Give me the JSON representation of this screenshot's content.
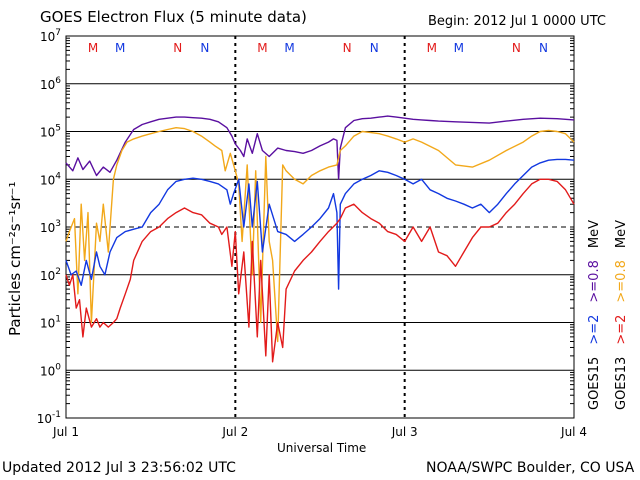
{
  "title": "GOES Electron Flux (5 minute data)",
  "begin": "Begin: 2012 Jul 1 0000 UTC",
  "updated": "Updated 2012 Jul  3 23:56:02 UTC",
  "source": "NOAA/SWPC Boulder, CO USA",
  "colors": {
    "red": "#e21b1b",
    "blue": "#1238e0",
    "purple": "#5a0fa0",
    "orange": "#f2a81a"
  },
  "chart_data": {
    "type": "line",
    "title": "GOES Electron Flux (5 minute data)",
    "xlabel": "Universal Time",
    "ylabel": "Particles cm⁻²s⁻¹sr⁻¹",
    "x_unit": "days since 2012 Jul 1 0000 UTC",
    "xlim": [
      0,
      3
    ],
    "x_ticks": [
      {
        "x": 0,
        "label": "Jul 1"
      },
      {
        "x": 1,
        "label": "Jul 2"
      },
      {
        "x": 2,
        "label": "Jul 3"
      },
      {
        "x": 3,
        "label": "Jul 4"
      }
    ],
    "y_scale": "log",
    "ylim": [
      0.1,
      10000000
    ],
    "y_ticks": [
      {
        "value": 0.1,
        "base": "10",
        "exp": "-1"
      },
      {
        "value": 1,
        "base": "10",
        "exp": "0"
      },
      {
        "value": 10,
        "base": "10",
        "exp": "1"
      },
      {
        "value": 100,
        "base": "10",
        "exp": "2"
      },
      {
        "value": 1000,
        "base": "10",
        "exp": "3"
      },
      {
        "value": 10000,
        "base": "10",
        "exp": "4"
      },
      {
        "value": 100000,
        "base": "10",
        "exp": "5"
      },
      {
        "value": 1000000,
        "base": "10",
        "exp": "6"
      },
      {
        "value": 10000000,
        "base": "10",
        "exp": "7"
      }
    ],
    "markers": [
      {
        "x": 0.16,
        "label": "M",
        "color": "#e21b1b"
      },
      {
        "x": 0.32,
        "label": "M",
        "color": "#1238e0"
      },
      {
        "x": 0.66,
        "label": "N",
        "color": "#e21b1b"
      },
      {
        "x": 0.82,
        "label": "N",
        "color": "#1238e0"
      },
      {
        "x": 1.16,
        "label": "M",
        "color": "#e21b1b"
      },
      {
        "x": 1.32,
        "label": "M",
        "color": "#1238e0"
      },
      {
        "x": 1.66,
        "label": "N",
        "color": "#e21b1b"
      },
      {
        "x": 1.82,
        "label": "N",
        "color": "#1238e0"
      },
      {
        "x": 2.16,
        "label": "M",
        "color": "#e21b1b"
      },
      {
        "x": 2.32,
        "label": "M",
        "color": "#1238e0"
      },
      {
        "x": 2.66,
        "label": "N",
        "color": "#e21b1b"
      },
      {
        "x": 2.82,
        "label": "N",
        "color": "#1238e0"
      }
    ],
    "dashed_threshold": 1000,
    "legend": {
      "placement": "right",
      "col1": [
        {
          "text": "GOES15",
          "color": "#000000"
        },
        {
          "text": ">=2",
          "color": "#1238e0"
        },
        {
          "text": ">=0.8",
          "color": "#5a0fa0"
        },
        {
          "text": "MeV",
          "color": "#000000"
        }
      ],
      "col2": [
        {
          "text": "GOES13",
          "color": "#000000"
        },
        {
          "text": ">=2",
          "color": "#e21b1b"
        },
        {
          "text": ">=0.8",
          "color": "#f2a81a"
        },
        {
          "text": "MeV",
          "color": "#000000"
        }
      ]
    },
    "series": [
      {
        "name": "GOES15 >=0.8 MeV",
        "color": "#5a0fa0",
        "x": [
          0,
          0.04,
          0.07,
          0.1,
          0.14,
          0.18,
          0.22,
          0.26,
          0.3,
          0.35,
          0.4,
          0.45,
          0.5,
          0.55,
          0.6,
          0.65,
          0.7,
          0.75,
          0.8,
          0.85,
          0.9,
          0.95,
          0.98,
          1.0,
          1.03,
          1.05,
          1.07,
          1.1,
          1.13,
          1.16,
          1.2,
          1.25,
          1.3,
          1.35,
          1.4,
          1.45,
          1.5,
          1.55,
          1.58,
          1.6,
          1.61,
          1.62,
          1.65,
          1.7,
          1.75,
          1.8,
          1.85,
          1.9,
          1.95,
          2.0,
          2.05,
          2.1,
          2.15,
          2.2,
          2.3,
          2.4,
          2.5,
          2.6,
          2.7,
          2.8,
          2.9,
          3.0
        ],
        "y": [
          22000,
          15000,
          28000,
          16000,
          24000,
          12000,
          18000,
          14000,
          25000,
          60000,
          110000,
          140000,
          160000,
          180000,
          190000,
          200000,
          200000,
          195000,
          190000,
          180000,
          160000,
          120000,
          80000,
          55000,
          40000,
          30000,
          70000,
          35000,
          90000,
          40000,
          30000,
          45000,
          40000,
          38000,
          35000,
          40000,
          50000,
          60000,
          70000,
          65000,
          10000,
          45000,
          120000,
          170000,
          185000,
          190000,
          200000,
          210000,
          200000,
          190000,
          180000,
          175000,
          170000,
          165000,
          160000,
          155000,
          150000,
          165000,
          180000,
          190000,
          185000,
          175000
        ]
      },
      {
        "name": "GOES13 >=0.8 MeV",
        "color": "#f2a81a",
        "x": [
          0,
          0.02,
          0.05,
          0.07,
          0.09,
          0.11,
          0.13,
          0.15,
          0.18,
          0.2,
          0.22,
          0.25,
          0.28,
          0.3,
          0.33,
          0.36,
          0.4,
          0.45,
          0.5,
          0.55,
          0.6,
          0.65,
          0.7,
          0.75,
          0.8,
          0.85,
          0.88,
          0.92,
          0.94,
          0.97,
          1.0,
          1.02,
          1.04,
          1.07,
          1.1,
          1.12,
          1.15,
          1.18,
          1.2,
          1.22,
          1.25,
          1.28,
          1.3,
          1.35,
          1.4,
          1.45,
          1.5,
          1.55,
          1.6,
          1.62,
          1.65,
          1.7,
          1.75,
          1.8,
          1.85,
          1.9,
          1.95,
          2.0,
          2.05,
          2.1,
          2.2,
          2.3,
          2.4,
          2.5,
          2.6,
          2.7,
          2.75,
          2.8,
          2.85,
          2.9,
          2.95,
          3.0
        ],
        "y": [
          500,
          800,
          1500,
          40,
          3000,
          200,
          2000,
          10,
          1200,
          500,
          3000,
          300,
          10000,
          20000,
          40000,
          60000,
          70000,
          80000,
          90000,
          100000,
          110000,
          120000,
          115000,
          100000,
          80000,
          60000,
          50000,
          40000,
          15000,
          35000,
          15000,
          8000,
          500,
          20000,
          100,
          15000,
          10,
          30000,
          500,
          200,
          4,
          20000,
          15000,
          10000,
          8000,
          12000,
          15000,
          18000,
          20000,
          40000,
          50000,
          80000,
          100000,
          95000,
          90000,
          80000,
          70000,
          60000,
          70000,
          60000,
          40000,
          20000,
          18000,
          25000,
          40000,
          60000,
          80000,
          100000,
          105000,
          100000,
          90000,
          60000
        ]
      },
      {
        "name": "GOES15 >=2 MeV",
        "color": "#1238e0",
        "x": [
          0,
          0.03,
          0.06,
          0.09,
          0.12,
          0.15,
          0.18,
          0.2,
          0.23,
          0.26,
          0.3,
          0.35,
          0.4,
          0.45,
          0.5,
          0.55,
          0.6,
          0.65,
          0.7,
          0.75,
          0.8,
          0.85,
          0.9,
          0.95,
          0.97,
          0.99,
          1.02,
          1.05,
          1.08,
          1.1,
          1.13,
          1.16,
          1.2,
          1.25,
          1.3,
          1.35,
          1.4,
          1.45,
          1.5,
          1.55,
          1.58,
          1.6,
          1.61,
          1.62,
          1.65,
          1.7,
          1.75,
          1.8,
          1.85,
          1.9,
          1.95,
          2.0,
          2.05,
          2.1,
          2.15,
          2.2,
          2.25,
          2.3,
          2.35,
          2.4,
          2.45,
          2.5,
          2.55,
          2.6,
          2.65,
          2.7,
          2.75,
          2.8,
          2.85,
          2.9,
          2.95,
          3.0
        ],
        "y": [
          200,
          100,
          120,
          60,
          200,
          80,
          300,
          150,
          100,
          300,
          600,
          800,
          900,
          1000,
          2000,
          3000,
          6000,
          9000,
          10000,
          10500,
          10000,
          9000,
          8000,
          6000,
          3000,
          5000,
          10000,
          1000,
          8000,
          1000,
          9000,
          300,
          3000,
          800,
          700,
          500,
          700,
          1000,
          1500,
          2500,
          5000,
          2000,
          50,
          3000,
          5000,
          8000,
          10000,
          12000,
          15000,
          14000,
          12000,
          10000,
          8000,
          10000,
          6000,
          5000,
          4000,
          3500,
          3000,
          2500,
          3000,
          2000,
          3000,
          5000,
          8000,
          12000,
          18000,
          22000,
          25000,
          26000,
          26000,
          25000
        ]
      },
      {
        "name": "GOES13 >=2 MeV",
        "color": "#e21b1b",
        "x": [
          0,
          0.02,
          0.04,
          0.06,
          0.08,
          0.1,
          0.12,
          0.15,
          0.18,
          0.2,
          0.22,
          0.25,
          0.28,
          0.3,
          0.32,
          0.35,
          0.38,
          0.4,
          0.45,
          0.5,
          0.55,
          0.6,
          0.65,
          0.7,
          0.75,
          0.8,
          0.85,
          0.9,
          0.92,
          0.95,
          0.98,
          1.0,
          1.02,
          1.05,
          1.08,
          1.1,
          1.13,
          1.15,
          1.18,
          1.2,
          1.22,
          1.25,
          1.28,
          1.3,
          1.35,
          1.4,
          1.45,
          1.5,
          1.55,
          1.6,
          1.62,
          1.65,
          1.7,
          1.75,
          1.8,
          1.85,
          1.9,
          1.95,
          2.0,
          2.05,
          2.1,
          2.15,
          2.2,
          2.25,
          2.3,
          2.35,
          2.4,
          2.45,
          2.5,
          2.55,
          2.6,
          2.65,
          2.7,
          2.75,
          2.8,
          2.85,
          2.9,
          2.95,
          3.0
        ],
        "y": [
          100,
          60,
          100,
          20,
          30,
          5,
          20,
          8,
          12,
          8,
          10,
          8,
          10,
          12,
          20,
          40,
          80,
          200,
          500,
          800,
          1000,
          1500,
          2000,
          2500,
          2000,
          1800,
          1200,
          1000,
          700,
          1000,
          150,
          800,
          40,
          300,
          8,
          500,
          5,
          200,
          2,
          100,
          1.5,
          10,
          3,
          50,
          120,
          200,
          300,
          500,
          800,
          1200,
          1500,
          2500,
          3000,
          2000,
          1500,
          1200,
          800,
          700,
          500,
          1000,
          500,
          1000,
          300,
          250,
          150,
          300,
          600,
          1000,
          1000,
          1200,
          2000,
          3000,
          5000,
          8000,
          10000,
          10000,
          9000,
          6000,
          3000
        ]
      }
    ]
  }
}
